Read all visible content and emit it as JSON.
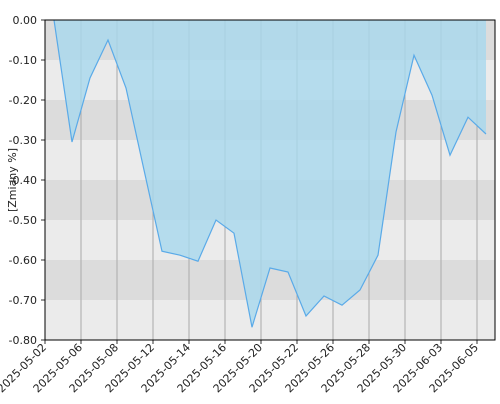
{
  "chart_data": {
    "type": "area",
    "ylabel": "[Zmiany %]",
    "categories": [
      "2025-05-02",
      null,
      "2025-05-06",
      null,
      "2025-05-08",
      null,
      "2025-05-12",
      null,
      "2025-05-14",
      null,
      "2025-05-16",
      null,
      "2025-05-20",
      null,
      "2025-05-22",
      null,
      "2025-05-26",
      null,
      "2025-05-28",
      null,
      "2025-05-30",
      null,
      "2025-06-03",
      null,
      "2025-06-05"
    ],
    "values": [
      0.0,
      -0.305,
      -0.145,
      -0.05,
      -0.17,
      -0.375,
      -0.578,
      -0.588,
      -0.603,
      -0.5,
      -0.533,
      -0.768,
      -0.62,
      -0.63,
      -0.74,
      -0.69,
      -0.713,
      -0.675,
      -0.588,
      -0.28,
      -0.088,
      -0.188,
      -0.338,
      -0.243,
      -0.285
    ],
    "color": "#5aaae8",
    "fill": "#a8d8ee",
    "ylim": [
      -0.8,
      0
    ],
    "yticks": [
      {
        "value": 0,
        "label": "0.00"
      },
      {
        "value": -0.1,
        "label": "-0.10"
      },
      {
        "value": -0.2,
        "label": "-0.20"
      },
      {
        "value": -0.3,
        "label": "-0.30"
      },
      {
        "value": -0.4,
        "label": "-0.40"
      },
      {
        "value": -0.5,
        "label": "-0.50"
      },
      {
        "value": -0.6,
        "label": "-0.60"
      },
      {
        "value": -0.7,
        "label": "-0.70"
      },
      {
        "value": -0.8,
        "label": "-0.80"
      }
    ],
    "grid": true
  }
}
